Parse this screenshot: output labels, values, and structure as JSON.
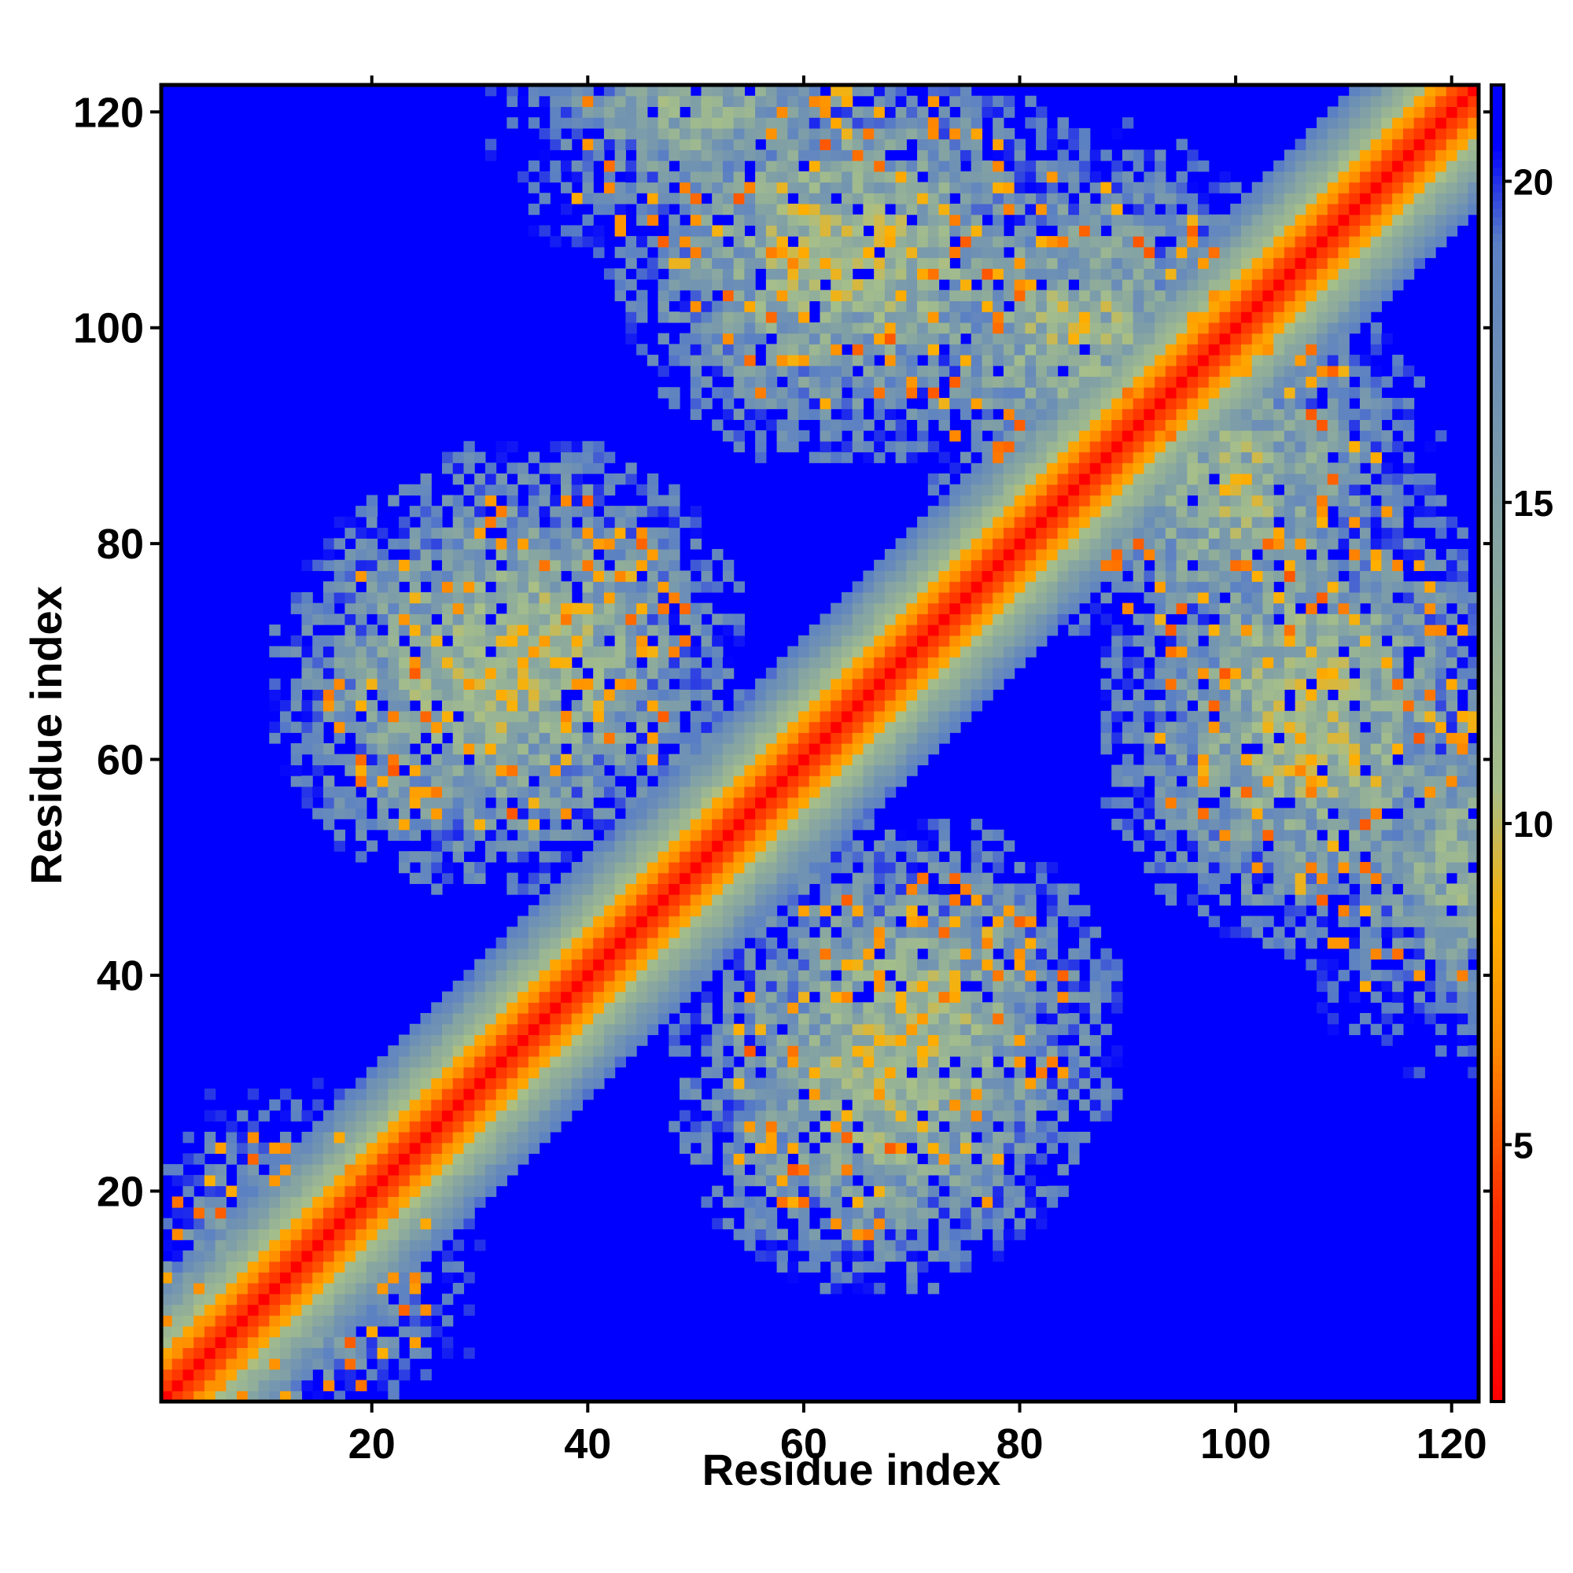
{
  "chart_data": {
    "type": "heatmap",
    "title": "",
    "xlabel": "Residue index",
    "ylabel": "Residue index",
    "n_residues": 122,
    "x_range": [
      1,
      122
    ],
    "y_range": [
      1,
      122
    ],
    "x_ticks": [
      20,
      40,
      60,
      80,
      100,
      120
    ],
    "y_ticks": [
      20,
      40,
      60,
      80,
      100,
      120
    ],
    "colorbar": {
      "range": [
        1,
        21.5
      ],
      "ticks": [
        5,
        10,
        15,
        20
      ],
      "tick_labels": [
        "5",
        "10",
        "15",
        "20"
      ],
      "stops": [
        {
          "value": 1,
          "color": "#ff0000"
        },
        {
          "value": 4,
          "color": "#ff3000"
        },
        {
          "value": 6.5,
          "color": "#ff8c00"
        },
        {
          "value": 8.5,
          "color": "#ffb000"
        },
        {
          "value": 10.5,
          "color": "#a6bf8a"
        },
        {
          "value": 15,
          "color": "#7f9fa7"
        },
        {
          "value": 19,
          "color": "#5b80c4"
        },
        {
          "value": 20.5,
          "color": "#0000ff"
        }
      ],
      "background_color": "#0000ff"
    },
    "structure": {
      "diagonal": "distance increases with |i - j|; red on the diagonal, orange within ~3 residues, green-grey band up to ~9 residues, blue beyond",
      "contact_blobs": [
        {
          "center": [
            67,
            107
          ],
          "level": 10.5
        },
        {
          "center": [
            35,
            70
          ],
          "level": 10
        },
        {
          "center": [
            107,
            62
          ],
          "level": 10
        },
        {
          "center": [
            67,
            30
          ],
          "level": 10
        },
        {
          "center": [
            100,
            85
          ],
          "level": 11
        },
        {
          "center": [
            122,
            50
          ],
          "level": 12
        },
        {
          "center": [
            12,
            12
          ],
          "level": 13
        }
      ]
    }
  }
}
